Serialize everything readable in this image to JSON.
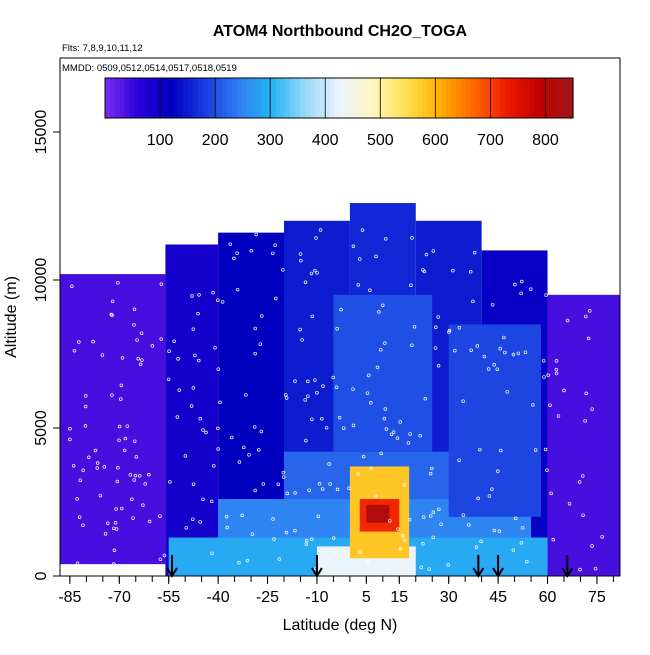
{
  "chart_data": {
    "type": "heatmap",
    "title": "ATOM4 Northbound CH2O_TOGA",
    "subtitle_flights": "Flts: 7,8,9,10,11,12",
    "subtitle_dates": "MMDD: 0509,0512,0514,0517,0518,0519",
    "xlabel": "Latitude (deg N)",
    "ylabel": "Altitude (m)",
    "xlim": [
      -88,
      82
    ],
    "ylim": [
      0,
      17500
    ],
    "x_ticks": [
      "-85",
      "-70",
      "-55",
      "-40",
      "-25",
      "-10",
      "5",
      "15",
      "30",
      "45",
      "60",
      "75"
    ],
    "x_tick_values": [
      -85,
      -70,
      -55,
      -40,
      -25,
      -10,
      5,
      15,
      30,
      45,
      60,
      75
    ],
    "y_ticks": [
      "0",
      "5000",
      "10000",
      "15000"
    ],
    "y_tick_values": [
      0,
      5000,
      10000,
      15000
    ],
    "colorbar": {
      "range": [
        0,
        850
      ],
      "tick_labels": [
        "100",
        "200",
        "300",
        "400",
        "500",
        "600",
        "700",
        "800"
      ],
      "tick_values": [
        100,
        200,
        300,
        400,
        500,
        600,
        700,
        800
      ],
      "colors": [
        "#7b2cf0",
        "#2a00d8",
        "#0000c0",
        "#1a3ce0",
        "#2f7ef0",
        "#25b5f5",
        "#9ad8f8",
        "#e8f4ff",
        "#fff6c0",
        "#ffe050",
        "#ffb000",
        "#ff6a00",
        "#ee1c00",
        "#c00000",
        "#a01818"
      ]
    },
    "flight_markers_lat": [
      -54,
      -10,
      39,
      45,
      66
    ],
    "regions": [
      {
        "lat": [
          -88,
          -56
        ],
        "alt": [
          400,
          10200
        ],
        "value": 40
      },
      {
        "lat": [
          -56,
          -40
        ],
        "alt": [
          0,
          11200
        ],
        "value": 90
      },
      {
        "lat": [
          -40,
          -20
        ],
        "alt": [
          0,
          11600
        ],
        "value": 120
      },
      {
        "lat": [
          -20,
          0
        ],
        "alt": [
          0,
          12000
        ],
        "value": 150
      },
      {
        "lat": [
          0,
          20
        ],
        "alt": [
          0,
          12600
        ],
        "value": 160
      },
      {
        "lat": [
          20,
          40
        ],
        "alt": [
          0,
          12000
        ],
        "value": 150
      },
      {
        "lat": [
          40,
          60
        ],
        "alt": [
          0,
          11000
        ],
        "value": 110
      },
      {
        "lat": [
          60,
          82
        ],
        "alt": [
          0,
          9500
        ],
        "value": 40
      },
      {
        "lat": [
          -55,
          60
        ],
        "alt": [
          0,
          1300
        ],
        "value": 290
      },
      {
        "lat": [
          -40,
          55
        ],
        "alt": [
          1300,
          2600
        ],
        "value": 250
      },
      {
        "lat": [
          -20,
          35
        ],
        "alt": [
          2600,
          4200
        ],
        "value": 220
      },
      {
        "lat": [
          -5,
          25
        ],
        "alt": [
          4200,
          9500
        ],
        "value": 200
      },
      {
        "lat": [
          30,
          58
        ],
        "alt": [
          2000,
          8500
        ],
        "value": 190
      },
      {
        "lat": [
          -10,
          20
        ],
        "alt": [
          0,
          1000
        ],
        "value": 430
      },
      {
        "lat": [
          0,
          18
        ],
        "alt": [
          600,
          3700
        ],
        "value": 580
      },
      {
        "lat": [
          3,
          15
        ],
        "alt": [
          1500,
          2600
        ],
        "value": 720
      },
      {
        "lat": [
          5,
          12
        ],
        "alt": [
          1800,
          2400
        ],
        "value": 820
      }
    ]
  }
}
